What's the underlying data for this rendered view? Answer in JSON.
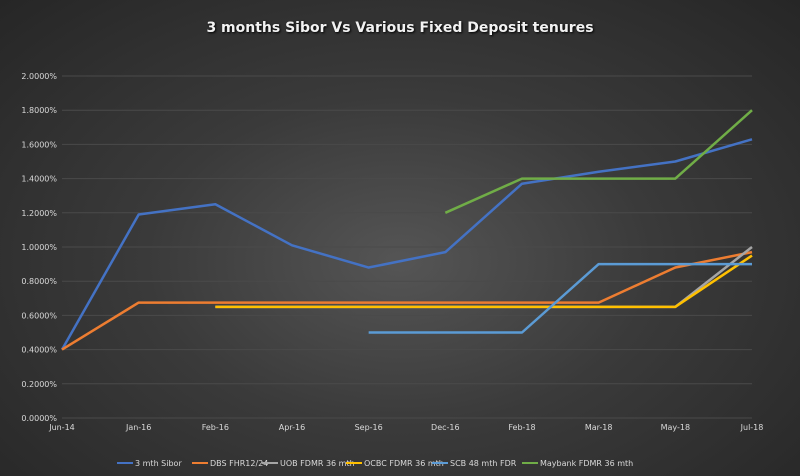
{
  "chart_data": {
    "type": "line",
    "title": "3 months Sibor Vs Various Fixed Deposit tenures",
    "xlabel": "",
    "ylabel": "",
    "categories": [
      "Jun-14",
      "Jan-16",
      "Feb-16",
      "Apr-16",
      "Sep-16",
      "Dec-16",
      "Feb-18",
      "Mar-18",
      "May-18",
      "Jul-18"
    ],
    "ylim": [
      0,
      2.0
    ],
    "yticks": [
      "0.0000%",
      "0.2000%",
      "0.4000%",
      "0.6000%",
      "0.8000%",
      "1.0000%",
      "1.2000%",
      "1.4000%",
      "1.6000%",
      "1.8000%",
      "2.0000%"
    ],
    "grid": true,
    "legend": "bottom",
    "series": [
      {
        "name": "3 mth Sibor",
        "color": "#4472c4",
        "values": [
          0.4,
          1.19,
          1.25,
          1.01,
          0.88,
          0.97,
          1.37,
          1.44,
          1.5,
          1.63
        ]
      },
      {
        "name": "DBS FHR12/24",
        "color": "#ed7d31",
        "values": [
          0.4,
          0.675,
          0.675,
          0.675,
          0.675,
          0.675,
          0.675,
          0.675,
          0.88,
          0.97
        ]
      },
      {
        "name": "UOB FDMR 36 mth",
        "color": "#a5a5a5",
        "values": [
          null,
          null,
          0.65,
          0.65,
          0.65,
          0.65,
          0.65,
          0.65,
          0.65,
          1.0
        ]
      },
      {
        "name": "OCBC FDMR 36 mth",
        "color": "#ffc000",
        "values": [
          null,
          null,
          0.65,
          0.65,
          0.65,
          0.65,
          0.65,
          0.65,
          0.65,
          0.95
        ]
      },
      {
        "name": "SCB 48 mth FDR",
        "color": "#5b9bd5",
        "values": [
          null,
          null,
          null,
          null,
          0.5,
          0.5,
          0.5,
          0.9,
          0.9,
          0.9
        ]
      },
      {
        "name": "Maybank FDMR 36 mth",
        "color": "#70ad47",
        "values": [
          null,
          null,
          null,
          null,
          null,
          1.2,
          1.4,
          1.4,
          1.4,
          1.8
        ]
      }
    ]
  }
}
